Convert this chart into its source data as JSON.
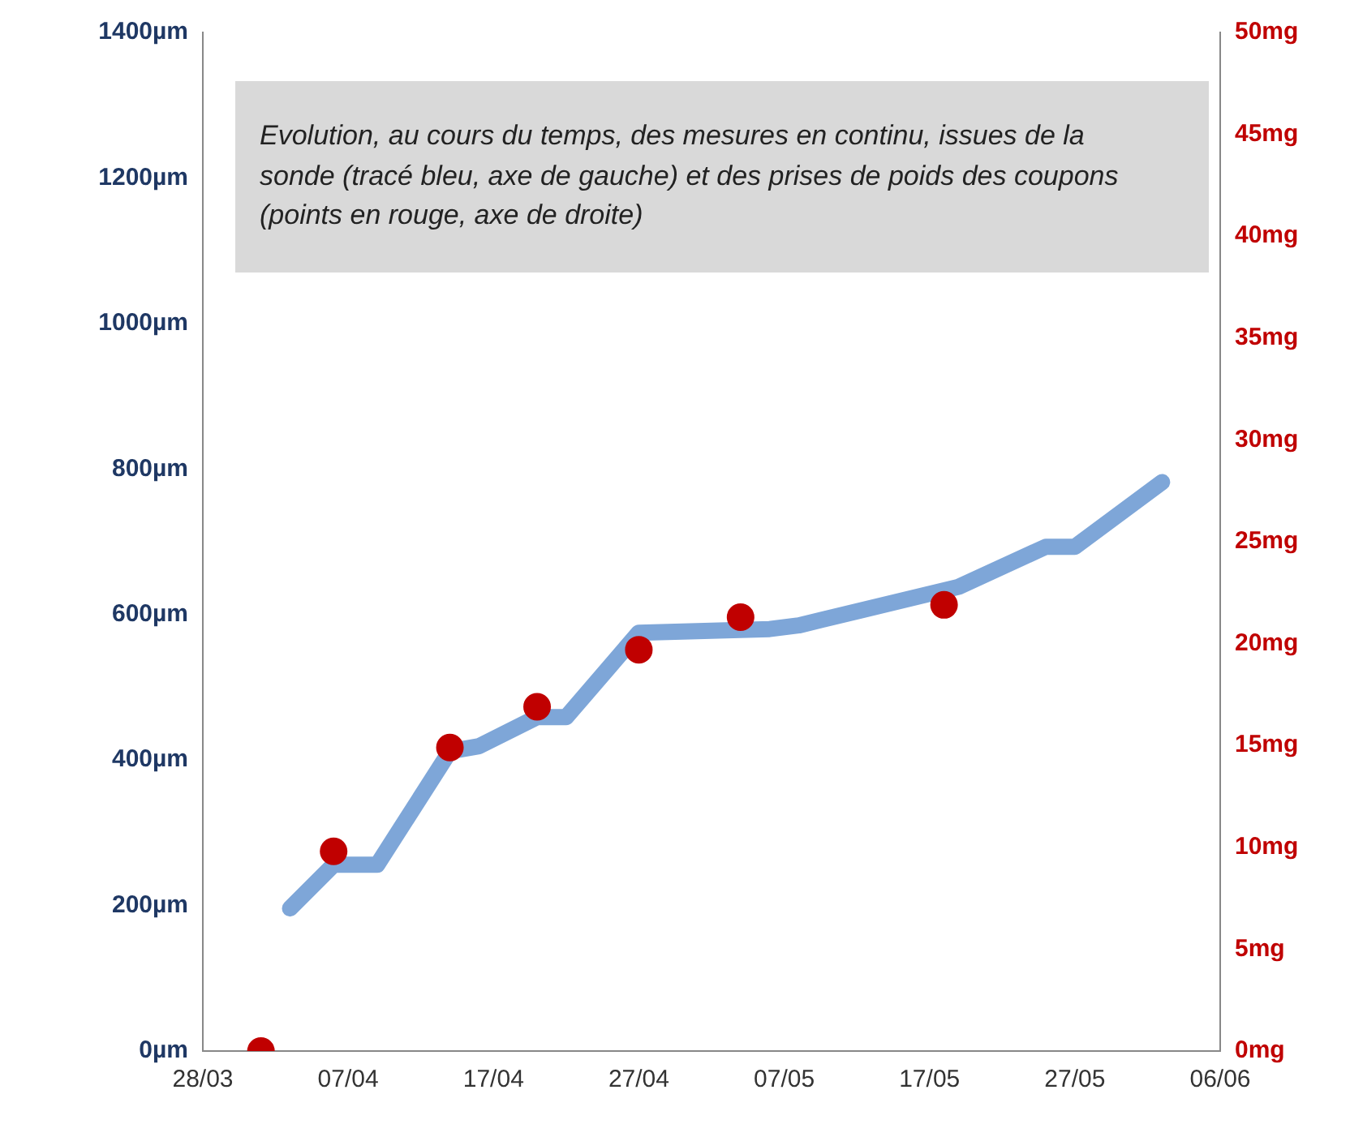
{
  "chart_data": {
    "type": "line",
    "annotations": [
      "Evolution, au cours du temps, des mesures en continu, issues de la sonde (tracé bleu, axe de gauche) et des prises de poids des coupons (points en rouge, axe de droite)"
    ],
    "xlim": [
      "--03-28",
      "--06-06"
    ],
    "xticks": [
      {
        "value": "--03-28",
        "label": "28/03"
      },
      {
        "value": "--04-07",
        "label": "07/04"
      },
      {
        "value": "--04-17",
        "label": "17/04"
      },
      {
        "value": "--04-27",
        "label": "27/04"
      },
      {
        "value": "--05-07",
        "label": "07/05"
      },
      {
        "value": "--05-17",
        "label": "17/05"
      },
      {
        "value": "--05-27",
        "label": "27/05"
      },
      {
        "value": "--06-06",
        "label": "06/06"
      }
    ],
    "ylim": [
      0,
      1400
    ],
    "yticks": [
      {
        "value": 0,
        "label": "0µm"
      },
      {
        "value": 200,
        "label": "200µm"
      },
      {
        "value": 400,
        "label": "400µm"
      },
      {
        "value": 600,
        "label": "600µm"
      },
      {
        "value": 800,
        "label": "800µm"
      },
      {
        "value": 1000,
        "label": "1000µm"
      },
      {
        "value": 1200,
        "label": "1200µm"
      },
      {
        "value": 1400,
        "label": "1400µm"
      }
    ],
    "y2lim": [
      0,
      50
    ],
    "y2ticks": [
      {
        "value": 0,
        "label": "0mg"
      },
      {
        "value": 5,
        "label": "5mg"
      },
      {
        "value": 10,
        "label": "10mg"
      },
      {
        "value": 15,
        "label": "15mg"
      },
      {
        "value": 20,
        "label": "20mg"
      },
      {
        "value": 25,
        "label": "25mg"
      },
      {
        "value": 30,
        "label": "30mg"
      },
      {
        "value": 35,
        "label": "35mg"
      },
      {
        "value": 40,
        "label": "40mg"
      },
      {
        "value": 45,
        "label": "45mg"
      },
      {
        "value": 50,
        "label": "50mg"
      }
    ],
    "grid": false,
    "legend": false,
    "series": [
      {
        "color": "#7ea6d8",
        "marker": "none",
        "x": [
          "--04-03",
          "--04-06",
          "--04-09",
          "--04-14",
          "--04-16",
          "--04-20",
          "--04-22",
          "--04-27",
          "--05-06",
          "--05-08",
          "--05-19",
          "--05-25",
          "--05-27",
          "--06-02"
        ],
        "values": [
          196,
          256,
          256,
          412,
          419,
          459,
          459,
          575,
          580,
          585,
          638,
          693,
          693,
          782
        ]
      },
      {
        "type": "scatter",
        "axis": "y2",
        "color": "#c00000",
        "marker": "circle",
        "x": [
          "--04-01",
          "--04-06",
          "--04-14",
          "--04-20",
          "--04-27",
          "--05-04",
          "--05-18"
        ],
        "values": [
          0,
          9.8,
          14.9,
          16.9,
          19.7,
          21.3,
          21.9
        ]
      }
    ]
  }
}
